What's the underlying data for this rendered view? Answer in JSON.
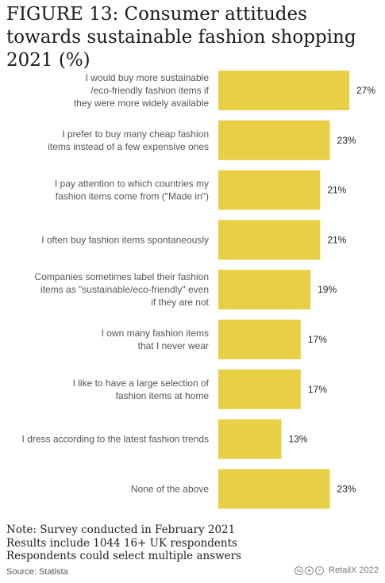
{
  "title": "FIGURE 13: Consumer attitudes towards sustainable fashion shopping 2021 (%)",
  "notes": [
    "Note: Survey conducted in February 2021",
    "Results include 1044 16+ UK respondents",
    "Respondents could select multiple answers"
  ],
  "source": "Source: Statista",
  "brand": "RetailX 2022",
  "license_icons": [
    "cc-icon",
    "by-icon",
    "nd-icon"
  ],
  "colors": {
    "bar": "#E8CF45",
    "label": "#555555",
    "value": "#222222"
  },
  "chart_data": {
    "type": "bar",
    "orientation": "horizontal",
    "categories": [
      [
        "I would buy more sustainable",
        "/eco-friendly fashion items if",
        "they were more widely available"
      ],
      [
        "I prefer to buy many cheap fashion",
        "items instead of a few expensive ones"
      ],
      [
        "I pay attention to which countries my",
        "fashion items come from (\"Made in\")"
      ],
      [
        "I often buy fashion items spontaneously"
      ],
      [
        "Companies sometimes label their fashion",
        "items as \"sustainable/eco-friendly\" even",
        "if they are not"
      ],
      [
        "I own many fashion items",
        "that I never wear"
      ],
      [
        "I like to have a large selection of",
        "fashion items at home"
      ],
      [
        "I dress according to the latest fashion trends"
      ],
      [
        "None of the above"
      ]
    ],
    "values": [
      27,
      23,
      21,
      21,
      19,
      17,
      17,
      13,
      23
    ],
    "value_labels": [
      "27%",
      "23%",
      "21%",
      "21%",
      "19%",
      "17%",
      "17%",
      "13%",
      "23%"
    ],
    "xlim": [
      0,
      27
    ],
    "grid": false,
    "legend": "none"
  }
}
